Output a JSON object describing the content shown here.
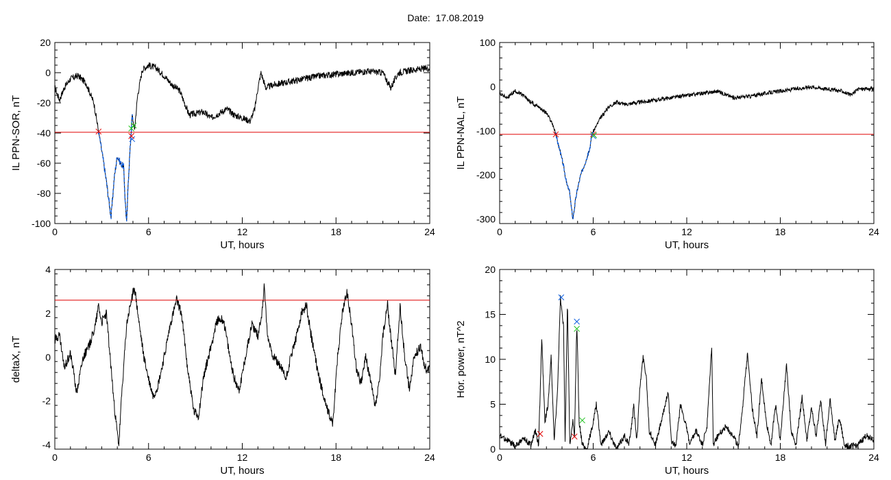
{
  "header": {
    "title": "Date:  17.08.2019"
  },
  "colors": {
    "threshold": "#e00000",
    "onset": "#e00000",
    "peak": "#1060e0",
    "end": "#20c020",
    "line": "#000000",
    "highlight": "#1060e0"
  },
  "chart_data": [
    {
      "id": "il-ppn-sor",
      "type": "line",
      "xlabel": "UT, hours",
      "ylabel": "IL PPN-SOR, nT",
      "xlim": [
        0,
        24
      ],
      "ylim": [
        -100,
        20
      ],
      "xticks": [
        0,
        6,
        12,
        18,
        24
      ],
      "yticks": [
        -100,
        -80,
        -60,
        -40,
        -20,
        0,
        20
      ],
      "threshold": -39.5,
      "highlight_range": [
        2.8,
        5.0
      ],
      "anchors": [
        [
          0,
          -10
        ],
        [
          0.3,
          -18
        ],
        [
          0.6,
          -10
        ],
        [
          1.0,
          -4
        ],
        [
          1.5,
          -2
        ],
        [
          2.0,
          -7
        ],
        [
          2.5,
          -20
        ],
        [
          2.8,
          -39
        ],
        [
          3.1,
          -58
        ],
        [
          3.3,
          -72
        ],
        [
          3.5,
          -88
        ],
        [
          3.6,
          -96
        ],
        [
          3.8,
          -70
        ],
        [
          4.0,
          -55
        ],
        [
          4.2,
          -60
        ],
        [
          4.4,
          -62
        ],
        [
          4.5,
          -84
        ],
        [
          4.6,
          -100
        ],
        [
          4.7,
          -72
        ],
        [
          4.85,
          -45
        ],
        [
          4.95,
          -28
        ],
        [
          5.1,
          -38
        ],
        [
          5.3,
          -15
        ],
        [
          5.6,
          2
        ],
        [
          6.0,
          5
        ],
        [
          6.5,
          3
        ],
        [
          7.0,
          -2
        ],
        [
          7.5,
          -8
        ],
        [
          8.0,
          -12
        ],
        [
          8.3,
          -20
        ],
        [
          8.6,
          -28
        ],
        [
          9.5,
          -26
        ],
        [
          10.0,
          -30
        ],
        [
          10.5,
          -27
        ],
        [
          11.0,
          -24
        ],
        [
          11.5,
          -28
        ],
        [
          12.0,
          -30
        ],
        [
          12.5,
          -32
        ],
        [
          12.8,
          -24
        ],
        [
          13.0,
          -10
        ],
        [
          13.2,
          0
        ],
        [
          13.5,
          -10
        ],
        [
          14.0,
          -8
        ],
        [
          15.0,
          -6
        ],
        [
          16.0,
          -4
        ],
        [
          17.0,
          -2
        ],
        [
          18.0,
          -1
        ],
        [
          19.0,
          0
        ],
        [
          20.0,
          1
        ],
        [
          21.0,
          0
        ],
        [
          21.5,
          -10
        ],
        [
          22.0,
          0
        ],
        [
          23.0,
          2
        ],
        [
          24.0,
          3
        ]
      ],
      "noise": 2.2,
      "markers": [
        {
          "x": 2.8,
          "y": -39,
          "color": "#e00000"
        },
        {
          "x": 4.95,
          "y": -44,
          "color": "#1060e0"
        },
        {
          "x": 4.9,
          "y": -42,
          "color": "#e00000"
        },
        {
          "x": 4.9,
          "y": -37,
          "color": "#20c020"
        },
        {
          "x": 5.05,
          "y": -35,
          "color": "#20c020"
        }
      ]
    },
    {
      "id": "il-ppn-nal",
      "type": "line",
      "xlabel": "UT, hours",
      "ylabel": "IL PPN-NAL, nT",
      "xlim": [
        0,
        24
      ],
      "ylim": [
        -310,
        100
      ],
      "xticks": [
        0,
        6,
        12,
        18,
        24
      ],
      "yticks": [
        -300,
        -200,
        -100,
        0,
        100
      ],
      "threshold": -108,
      "highlight_range": [
        3.6,
        6.0
      ],
      "anchors": [
        [
          0,
          -15
        ],
        [
          0.5,
          -25
        ],
        [
          1.0,
          -10
        ],
        [
          1.5,
          -20
        ],
        [
          2.0,
          -35
        ],
        [
          2.5,
          -45
        ],
        [
          3.0,
          -60
        ],
        [
          3.4,
          -85
        ],
        [
          3.6,
          -108
        ],
        [
          3.9,
          -150
        ],
        [
          4.1,
          -180
        ],
        [
          4.3,
          -220
        ],
        [
          4.5,
          -240
        ],
        [
          4.6,
          -275
        ],
        [
          4.7,
          -300
        ],
        [
          4.85,
          -260
        ],
        [
          5.0,
          -230
        ],
        [
          5.2,
          -200
        ],
        [
          5.4,
          -180
        ],
        [
          5.6,
          -160
        ],
        [
          5.8,
          -140
        ],
        [
          5.9,
          -108
        ],
        [
          6.1,
          -95
        ],
        [
          6.5,
          -70
        ],
        [
          7.0,
          -45
        ],
        [
          7.5,
          -35
        ],
        [
          8.0,
          -40
        ],
        [
          9.0,
          -35
        ],
        [
          10.0,
          -30
        ],
        [
          11.0,
          -25
        ],
        [
          12.0,
          -20
        ],
        [
          13.0,
          -15
        ],
        [
          14.0,
          -10
        ],
        [
          15.0,
          -25
        ],
        [
          16.0,
          -22
        ],
        [
          17.0,
          -15
        ],
        [
          18.0,
          -10
        ],
        [
          19.0,
          -5
        ],
        [
          20.0,
          0
        ],
        [
          21.0,
          -5
        ],
        [
          22.0,
          -10
        ],
        [
          22.5,
          -20
        ],
        [
          23.0,
          -5
        ],
        [
          24.0,
          -5
        ]
      ],
      "noise": 4.5,
      "markers": [
        {
          "x": 3.6,
          "y": -108,
          "color": "#e00000"
        },
        {
          "x": 6.0,
          "y": -108,
          "color": "#e00000"
        },
        {
          "x": 6.0,
          "y": -112,
          "color": "#1060e0"
        },
        {
          "x": 6.05,
          "y": -110,
          "color": "#20c020"
        }
      ]
    },
    {
      "id": "delta-x",
      "type": "line",
      "xlabel": "UT, hours",
      "ylabel": "deltaX, nT",
      "xlim": [
        0,
        24
      ],
      "ylim": [
        -4.2,
        4
      ],
      "xticks": [
        0,
        6,
        12,
        18,
        24
      ],
      "yticks": [
        -4,
        -2,
        0,
        2,
        4
      ],
      "threshold": 2.6,
      "anchors": [
        [
          0,
          0.8
        ],
        [
          0.3,
          1.0
        ],
        [
          0.6,
          -0.5
        ],
        [
          1.0,
          0.2
        ],
        [
          1.4,
          -1.6
        ],
        [
          1.8,
          0.0
        ],
        [
          2.2,
          0.5
        ],
        [
          2.6,
          1.5
        ],
        [
          2.8,
          2.4
        ],
        [
          3.0,
          1.6
        ],
        [
          3.3,
          2.0
        ],
        [
          3.6,
          -0.5
        ],
        [
          3.8,
          -2.2
        ],
        [
          4.0,
          -3.5
        ],
        [
          4.1,
          -4.0
        ],
        [
          4.3,
          -1.5
        ],
        [
          4.6,
          1.5
        ],
        [
          4.9,
          2.6
        ],
        [
          5.1,
          3.2
        ],
        [
          5.4,
          1.5
        ],
        [
          5.7,
          0.0
        ],
        [
          6.0,
          -1.0
        ],
        [
          6.3,
          -1.8
        ],
        [
          6.6,
          -1.3
        ],
        [
          7.0,
          0.0
        ],
        [
          7.4,
          1.5
        ],
        [
          7.8,
          2.6
        ],
        [
          8.1,
          2.0
        ],
        [
          8.5,
          -0.5
        ],
        [
          8.9,
          -2.5
        ],
        [
          9.2,
          -2.7
        ],
        [
          9.5,
          -1.0
        ],
        [
          10.0,
          0.5
        ],
        [
          10.4,
          1.7
        ],
        [
          10.8,
          1.7
        ],
        [
          11.2,
          0.0
        ],
        [
          11.5,
          -1.0
        ],
        [
          11.8,
          -1.5
        ],
        [
          12.2,
          0.0
        ],
        [
          12.6,
          1.5
        ],
        [
          13.0,
          1.0
        ],
        [
          13.3,
          2.2
        ],
        [
          13.4,
          3.4
        ],
        [
          13.6,
          1.0
        ],
        [
          14.0,
          0.0
        ],
        [
          14.5,
          -0.5
        ],
        [
          14.8,
          -1.0
        ],
        [
          15.1,
          0.0
        ],
        [
          15.5,
          1.0
        ],
        [
          15.8,
          2.0
        ],
        [
          16.1,
          2.4
        ],
        [
          16.4,
          1.0
        ],
        [
          16.8,
          -0.5
        ],
        [
          17.1,
          -1.5
        ],
        [
          17.5,
          -2.5
        ],
        [
          17.8,
          -3.0
        ],
        [
          18.1,
          0.0
        ],
        [
          18.4,
          2.0
        ],
        [
          18.7,
          3.0
        ],
        [
          19.0,
          1.5
        ],
        [
          19.3,
          -0.5
        ],
        [
          19.6,
          -1.2
        ],
        [
          19.9,
          0.0
        ],
        [
          20.2,
          -1.0
        ],
        [
          20.5,
          -2.3
        ],
        [
          20.8,
          -1.0
        ],
        [
          21.0,
          1.0
        ],
        [
          21.3,
          2.4
        ],
        [
          21.5,
          1.0
        ],
        [
          21.8,
          -0.8
        ],
        [
          22.1,
          2.3
        ],
        [
          22.4,
          0.0
        ],
        [
          22.7,
          -1.5
        ],
        [
          23.0,
          0.0
        ],
        [
          23.4,
          0.5
        ],
        [
          23.7,
          -0.5
        ],
        [
          24.0,
          -0.5
        ]
      ],
      "noise": 0.22,
      "markers": []
    },
    {
      "id": "hor-power",
      "type": "line",
      "xlabel": "UT, hours",
      "ylabel": "Hor. power, nT^2",
      "xlim": [
        0,
        24
      ],
      "ylim": [
        0,
        20
      ],
      "xticks": [
        0,
        6,
        12,
        18,
        24
      ],
      "yticks": [
        0,
        5,
        10,
        15,
        20
      ],
      "nonnegative": true,
      "anchors": [
        [
          0,
          1.5
        ],
        [
          0.5,
          1.0
        ],
        [
          1.0,
          0.3
        ],
        [
          1.5,
          1.2
        ],
        [
          2.0,
          0.5
        ],
        [
          2.3,
          2.0
        ],
        [
          2.5,
          0.5
        ],
        [
          2.7,
          12.3
        ],
        [
          2.9,
          3.0
        ],
        [
          3.1,
          5.0
        ],
        [
          3.3,
          10.2
        ],
        [
          3.5,
          1.0
        ],
        [
          3.7,
          6.0
        ],
        [
          3.9,
          16.9
        ],
        [
          4.1,
          13.5
        ],
        [
          4.2,
          1.0
        ],
        [
          4.35,
          16.4
        ],
        [
          4.5,
          0.5
        ],
        [
          4.7,
          3.0
        ],
        [
          4.8,
          1.4
        ],
        [
          4.95,
          14.2
        ],
        [
          5.1,
          3.0
        ],
        [
          5.3,
          0.5
        ],
        [
          5.6,
          0.0
        ],
        [
          6.0,
          3.0
        ],
        [
          6.2,
          5.0
        ],
        [
          6.5,
          0.5
        ],
        [
          7.0,
          2.0
        ],
        [
          7.5,
          0.0
        ],
        [
          8.0,
          1.5
        ],
        [
          8.3,
          0.5
        ],
        [
          8.6,
          4.8
        ],
        [
          8.8,
          1.0
        ],
        [
          9.0,
          7.0
        ],
        [
          9.2,
          10.2
        ],
        [
          9.4,
          8.2
        ],
        [
          9.6,
          2.0
        ],
        [
          10.0,
          0.5
        ],
        [
          10.5,
          4.0
        ],
        [
          10.8,
          6.5
        ],
        [
          11.0,
          1.0
        ],
        [
          11.3,
          0.3
        ],
        [
          11.6,
          5.0
        ],
        [
          11.9,
          3.0
        ],
        [
          12.2,
          0.5
        ],
        [
          12.6,
          2.0
        ],
        [
          13.0,
          0.5
        ],
        [
          13.3,
          2.5
        ],
        [
          13.6,
          11.5
        ],
        [
          13.7,
          0.5
        ],
        [
          14.0,
          1.5
        ],
        [
          14.5,
          2.5
        ],
        [
          15.0,
          1.5
        ],
        [
          15.3,
          0.2
        ],
        [
          15.6,
          5.0
        ],
        [
          15.9,
          10.8
        ],
        [
          16.2,
          4.5
        ],
        [
          16.5,
          1.5
        ],
        [
          16.8,
          7.8
        ],
        [
          17.1,
          3.0
        ],
        [
          17.4,
          0.5
        ],
        [
          17.7,
          5.0
        ],
        [
          18.0,
          1.0
        ],
        [
          18.4,
          9.5
        ],
        [
          18.7,
          2.0
        ],
        [
          19.0,
          0.5
        ],
        [
          19.4,
          5.8
        ],
        [
          19.7,
          1.0
        ],
        [
          20.0,
          4.5
        ],
        [
          20.3,
          1.5
        ],
        [
          20.6,
          5.5
        ],
        [
          20.9,
          0.5
        ],
        [
          21.2,
          5.5
        ],
        [
          21.5,
          1.0
        ],
        [
          21.8,
          3.5
        ],
        [
          22.1,
          0.5
        ],
        [
          22.5,
          0.3
        ],
        [
          23.0,
          0.5
        ],
        [
          23.5,
          1.5
        ],
        [
          24.0,
          1.0
        ]
      ],
      "noise": 0.35,
      "markers": [
        {
          "x": 2.6,
          "y": 1.7,
          "color": "#e00000"
        },
        {
          "x": 3.95,
          "y": 16.9,
          "color": "#1060e0"
        },
        {
          "x": 4.95,
          "y": 14.2,
          "color": "#1060e0"
        },
        {
          "x": 4.95,
          "y": 13.4,
          "color": "#20c020"
        },
        {
          "x": 4.8,
          "y": 1.4,
          "color": "#e00000"
        },
        {
          "x": 5.3,
          "y": 3.2,
          "color": "#20c020"
        }
      ]
    }
  ]
}
